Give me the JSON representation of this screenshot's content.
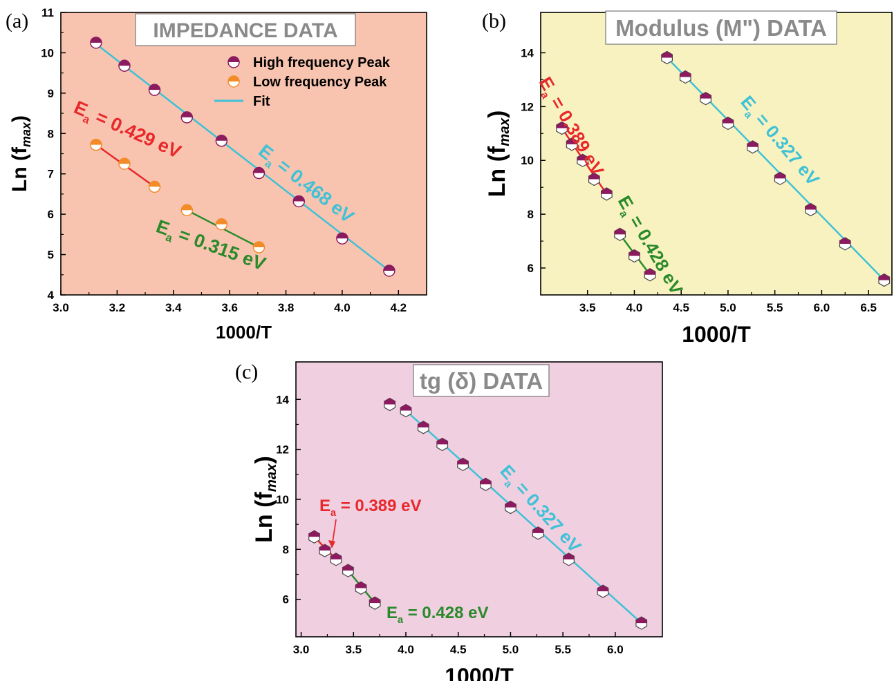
{
  "chart_data": [
    {
      "panel": "(a)",
      "type": "scatter",
      "title": "IMPEDANCE DATA",
      "xlabel": "1000/T",
      "ylabel": "Ln (f",
      "ylabel_sub": "max",
      "xlim": [
        3.0,
        4.3
      ],
      "ylim": [
        4,
        11
      ],
      "xticks": [
        "3.0",
        "3.2",
        "3.4",
        "3.6",
        "3.8",
        "4.0",
        "4.2"
      ],
      "yticks": [
        "4",
        "5",
        "6",
        "7",
        "8",
        "9",
        "10",
        "11"
      ],
      "background": "#f8c4b0",
      "legend_position": "top-right",
      "legend": [
        "High frequency Peak",
        "Low frequency Peak",
        "Fit"
      ],
      "series": [
        {
          "name": "High frequency Peak",
          "marker": "circle-half",
          "color": "#8b1a5e",
          "x": [
            3.125,
            3.226,
            3.333,
            3.448,
            3.571,
            3.704,
            3.846,
            4.0,
            4.167
          ],
          "y": [
            10.25,
            9.68,
            9.08,
            8.4,
            7.82,
            7.02,
            6.32,
            5.4,
            4.6
          ]
        },
        {
          "name": "Low frequency Peak",
          "marker": "circle-half",
          "color": "#f28c28",
          "x": [
            3.125,
            3.226,
            3.333,
            3.448,
            3.571,
            3.704
          ],
          "y": [
            7.72,
            7.25,
            6.68,
            6.1,
            5.75,
            5.18
          ]
        }
      ],
      "fits": [
        {
          "color": "#3fc1d6",
          "x": [
            3.125,
            4.167
          ],
          "y": [
            10.22,
            4.6
          ]
        },
        {
          "color": "#e8282b",
          "x": [
            3.125,
            3.333
          ],
          "y": [
            7.72,
            6.68
          ]
        },
        {
          "color": "#2a8a2a",
          "x": [
            3.448,
            3.704
          ],
          "y": [
            6.1,
            5.18
          ]
        }
      ],
      "annotations": [
        {
          "pre": "E",
          "sub": "a",
          "text": " = 0.468 eV",
          "color": "#3fc1d6"
        },
        {
          "pre": "E",
          "sub": "a",
          "text": " = 0.429 eV",
          "color": "#e8282b"
        },
        {
          "pre": "E",
          "sub": "a",
          "text": " = 0.315 eV",
          "color": "#2a8a2a"
        }
      ]
    },
    {
      "panel": "(b)",
      "type": "scatter",
      "title": "Modulus (M\") DATA",
      "xlabel": "1000/T",
      "ylabel": "Ln (f",
      "ylabel_sub": "max",
      "xlim": [
        3.0,
        6.75
      ],
      "ylim": [
        5,
        15.5
      ],
      "xticks": [
        "3.5",
        "4.0",
        "4.5",
        "5.0",
        "5.5",
        "6.0",
        "6.5"
      ],
      "yticks": [
        "6",
        "8",
        "10",
        "12",
        "14"
      ],
      "background": "#f8f2c0",
      "series": [
        {
          "name": "",
          "marker": "hexagon-half",
          "color": "#8b1a5e",
          "x": [
            3.226,
            3.333,
            3.448,
            3.571,
            3.704
          ],
          "y": [
            11.2,
            10.6,
            10.0,
            9.3,
            8.75
          ]
        },
        {
          "name": "",
          "marker": "hexagon-half",
          "color": "#8b1a5e",
          "x": [
            3.846,
            4.0,
            4.167
          ],
          "y": [
            7.25,
            6.45,
            5.75
          ]
        },
        {
          "name": "",
          "marker": "hexagon-half",
          "color": "#8b1a5e",
          "x": [
            4.348,
            4.545,
            4.762,
            5.0,
            5.263,
            5.556,
            5.882,
            6.25,
            6.667
          ],
          "y": [
            13.82,
            13.1,
            12.3,
            11.38,
            10.5,
            9.33,
            8.17,
            6.9,
            5.55
          ]
        }
      ],
      "fits": [
        {
          "color": "#e8282b",
          "x": [
            3.226,
            3.704
          ],
          "y": [
            11.2,
            8.75
          ]
        },
        {
          "color": "#2a8a2a",
          "x": [
            3.846,
            4.167
          ],
          "y": [
            7.25,
            5.75
          ]
        },
        {
          "color": "#3fc1d6",
          "x": [
            4.348,
            6.667
          ],
          "y": [
            13.82,
            5.55
          ]
        }
      ],
      "annotations": [
        {
          "pre": "E",
          "sub": "a",
          "text": " = 0.389 eV",
          "color": "#e8282b"
        },
        {
          "pre": "E",
          "sub": "a",
          "text": " = 0.428 eV",
          "color": "#2a8a2a"
        },
        {
          "pre": "E",
          "sub": "a",
          "text": " = 0.327 eV",
          "color": "#3fc1d6"
        }
      ]
    },
    {
      "panel": "(c)",
      "type": "scatter",
      "title": "tg (δ) DATA",
      "xlabel": "1000/T",
      "ylabel": "Ln (f",
      "ylabel_sub": "max",
      "xlim": [
        2.95,
        6.45
      ],
      "ylim": [
        4.5,
        15.5
      ],
      "xticks": [
        "3.0",
        "3.5",
        "4.0",
        "4.5",
        "5.0",
        "5.5",
        "6.0"
      ],
      "yticks": [
        "6",
        "8",
        "10",
        "12",
        "14"
      ],
      "background": "#f0cfe0",
      "series": [
        {
          "name": "",
          "marker": "hexagon-half",
          "color": "#8b1a5e",
          "x": [
            3.125,
            3.226,
            3.333,
            3.448,
            3.571,
            3.704
          ],
          "y": [
            8.5,
            7.95,
            7.6,
            7.15,
            6.45,
            5.85
          ]
        },
        {
          "name": "",
          "marker": "hexagon-half",
          "color": "#8b1a5e",
          "x": [
            3.846,
            4.0,
            4.167,
            4.348,
            4.545,
            4.762,
            5.0,
            5.263,
            5.556,
            5.882,
            6.25
          ],
          "y": [
            13.8,
            13.55,
            12.88,
            12.2,
            11.4,
            10.6,
            9.68,
            8.65,
            7.6,
            6.32,
            5.05
          ]
        }
      ],
      "fits": [
        {
          "color": "#e8282b",
          "x": [
            3.125,
            3.333
          ],
          "y": [
            8.5,
            7.6
          ]
        },
        {
          "color": "#2a8a2a",
          "x": [
            3.448,
            3.704
          ],
          "y": [
            7.15,
            5.85
          ]
        },
        {
          "color": "#3fc1d6",
          "x": [
            4.0,
            6.25
          ],
          "y": [
            13.55,
            5.05
          ]
        }
      ],
      "annotations": [
        {
          "pre": "E",
          "sub": "a",
          "text": " = 0.389 eV",
          "color": "#e8282b"
        },
        {
          "pre": "E",
          "sub": "a",
          "text": " = 0.428 eV",
          "color": "#2a8a2a"
        },
        {
          "pre": "E",
          "sub": "a",
          "text": " = 0.327 eV",
          "color": "#3fc1d6"
        }
      ]
    }
  ]
}
